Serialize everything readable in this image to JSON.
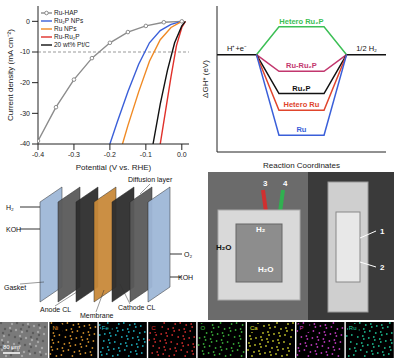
{
  "chart_data": [
    {
      "type": "line",
      "xlabel": "Potential (V vs. RHE)",
      "ylabel": "Current density (mA cm⁻²)",
      "xlim": [
        -0.4,
        0.02
      ],
      "xticks": [
        -0.4,
        -0.3,
        -0.2,
        -0.1,
        {
          "value": 0,
          "label": "0.0"
        }
      ],
      "ylim": [
        -40,
        5
      ],
      "yticks": [
        -40,
        -30,
        -20,
        -10,
        0
      ],
      "hline": -10,
      "legend": "upper left",
      "series": [
        {
          "name": "Ru-HAP",
          "color": "#8c8c8c",
          "marker": "circle",
          "x": [
            0,
            -0.05,
            -0.1,
            -0.15,
            -0.2,
            -0.25,
            -0.3,
            -0.35,
            -0.4
          ],
          "values": [
            0,
            -0.3,
            -1.5,
            -3.5,
            -7,
            -12,
            -19,
            -28,
            -39
          ]
        },
        {
          "name": "Ru₂P NPs",
          "color": "#3a5fd9",
          "marker": "none",
          "x": [
            0,
            -0.03,
            -0.06,
            -0.09,
            -0.12,
            -0.15,
            -0.18,
            -0.2
          ],
          "values": [
            0,
            -1,
            -3,
            -7,
            -14,
            -23,
            -33,
            -40
          ]
        },
        {
          "name": "Ru NPs",
          "color": "#f08a24",
          "marker": "none",
          "x": [
            0,
            -0.03,
            -0.06,
            -0.09,
            -0.12,
            -0.15,
            -0.165
          ],
          "values": [
            0,
            -2,
            -6,
            -13,
            -23,
            -34,
            -40
          ]
        },
        {
          "name": "Ru-Ru₂P",
          "color": "#e0302a",
          "marker": "none",
          "x": [
            0.01,
            0,
            -0.015,
            -0.03,
            -0.045,
            -0.06
          ],
          "values": [
            0,
            -2,
            -8,
            -18,
            -29,
            -40
          ]
        },
        {
          "name": "20 wt% Pt/C",
          "color": "#111111",
          "marker": "none",
          "x": [
            0.01,
            0,
            -0.02,
            -0.04,
            -0.06,
            -0.08
          ],
          "values": [
            0,
            -1.5,
            -7,
            -16,
            -27,
            -40
          ]
        }
      ]
    },
    {
      "type": "energy_diagram",
      "ylabel": "ΔGH* (eV)",
      "xlabel": "Reaction Coordinates",
      "tick_labels": false,
      "ylim": [
        -0.7,
        0.35
      ],
      "start_label": "H⁺+e⁻",
      "end_label": "1/2 H₂",
      "categories": [
        "Hetero Ru₂P",
        "Ru-Ru₂P",
        "Ru₂P",
        "Hetero Ru",
        "Ru"
      ],
      "values": [
        0.2,
        -0.12,
        -0.28,
        -0.4,
        -0.58
      ],
      "colors": [
        "#3cbf55",
        "#c2376e",
        "#111111",
        "#e0452c",
        "#3a5fd9"
      ]
    }
  ],
  "schematic": {
    "labels": [
      "H₂",
      "KOH",
      "Diffusion layer",
      "Gasket",
      "Anode CL",
      "Membrane",
      "Cathode CL",
      "O₂",
      "KOH"
    ]
  },
  "photo": {
    "labels": [
      "1",
      "2",
      "3",
      "4",
      "H₂O",
      "H₂",
      "H₂O"
    ]
  },
  "eds_maps": {
    "scale_bar": "80 μm",
    "elements": [
      {
        "name": "Ni",
        "color": "#e8a030"
      },
      {
        "name": "Fe",
        "color": "#20c0d0"
      },
      {
        "name": "C",
        "color": "#e03030"
      },
      {
        "name": "O",
        "color": "#40c040"
      },
      {
        "name": "Ca",
        "color": "#e0e030"
      },
      {
        "name": "P",
        "color": "#d040d0"
      },
      {
        "name": "Ru",
        "color": "#20d0a0"
      }
    ]
  }
}
